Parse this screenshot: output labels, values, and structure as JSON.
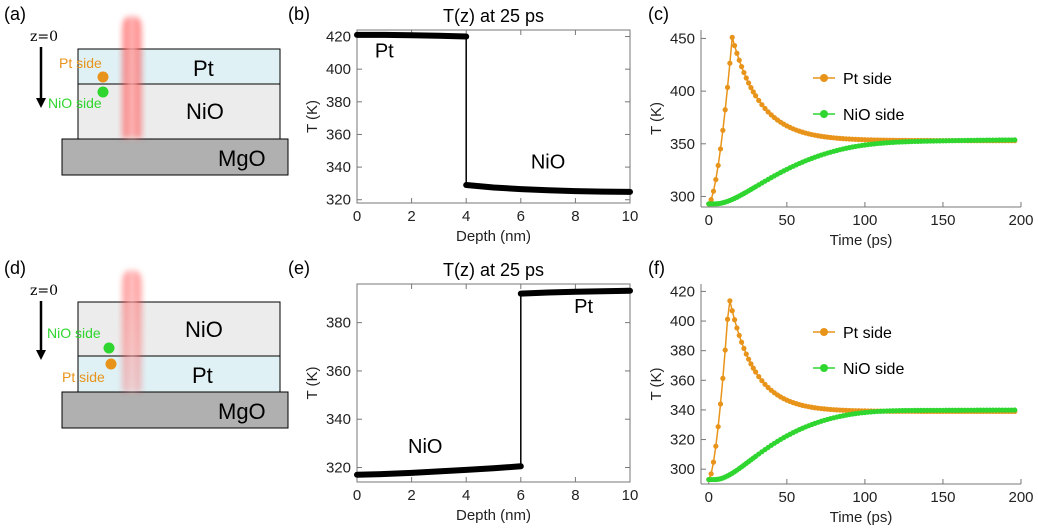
{
  "panel_labels": {
    "a": "(a)",
    "b": "(b)",
    "c": "(c)",
    "d": "(d)",
    "e": "(e)",
    "f": "(f)"
  },
  "schematics": [
    {
      "z_label": "z=0",
      "top_layer": "Pt",
      "middle_layer": "NiO",
      "substrate": "MgO",
      "upper_side_label": "Pt side",
      "lower_side_label": "NiO side",
      "colors": {
        "pt_layer": "#dff1f5",
        "nio_layer": "#ececec",
        "mgo": "#b0b0b0",
        "pt_side": "#e8931a",
        "nio_side": "#2fd62f"
      }
    },
    {
      "z_label": "z=0",
      "top_layer": "NiO",
      "middle_layer": "Pt",
      "substrate": "MgO",
      "upper_side_label": "NiO side",
      "lower_side_label": "Pt side",
      "colors": {
        "pt_layer": "#dff1f5",
        "nio_layer": "#ececec",
        "mgo": "#b0b0b0",
        "pt_side": "#e8931a",
        "nio_side": "#2fd62f"
      }
    }
  ],
  "chart_data": [
    {
      "id": "b",
      "type": "line",
      "title": "T(z) at 25 ps",
      "xlabel": "Depth (nm)",
      "ylabel": "T (K)",
      "xlim": [
        0,
        10
      ],
      "ylim": [
        318,
        424
      ],
      "xticks": [
        0,
        2,
        4,
        6,
        8,
        10
      ],
      "yticks": [
        320,
        340,
        360,
        380,
        400,
        420
      ],
      "annotations": [
        {
          "text": "Pt",
          "x": 1.0,
          "y": 407
        },
        {
          "text": "NiO",
          "x": 7.0,
          "y": 339
        }
      ],
      "color": "#000000",
      "series": [
        {
          "name": "T(z)",
          "x": [
            0,
            1,
            2,
            3,
            4,
            4,
            5,
            6,
            7,
            8,
            9,
            10
          ],
          "y": [
            421,
            421,
            420.8,
            420.5,
            420,
            329,
            327.5,
            326.5,
            325.8,
            325.3,
            325,
            324.8
          ]
        }
      ]
    },
    {
      "id": "c",
      "type": "scatter",
      "xlabel": "Time (ps)",
      "ylabel": "T (K)",
      "xlim": [
        -5,
        200
      ],
      "ylim": [
        290,
        458
      ],
      "xticks": [
        0,
        50,
        100,
        150,
        200
      ],
      "yticks": [
        300,
        350,
        400,
        450
      ],
      "legend": "top-right",
      "series": [
        {
          "name": "Pt side",
          "color": "#e8931a",
          "peak_time": 15,
          "peak": 451,
          "start": 293,
          "final": 353,
          "tau": 18
        },
        {
          "name": "NiO side",
          "color": "#2fd62f",
          "start": 293,
          "final": 354,
          "tau": 26,
          "onset": 4,
          "overshoot": 2
        }
      ]
    },
    {
      "id": "e",
      "type": "line",
      "title": "T(z) at 25 ps",
      "xlabel": "Depth (nm)",
      "ylabel": "T (K)",
      "xlim": [
        0,
        10
      ],
      "ylim": [
        314,
        396
      ],
      "xticks": [
        0,
        2,
        4,
        6,
        8,
        10
      ],
      "yticks": [
        320,
        340,
        360,
        380
      ],
      "annotations": [
        {
          "text": "Pt",
          "x": 8.3,
          "y": 384
        },
        {
          "text": "NiO",
          "x": 2.5,
          "y": 326
        }
      ],
      "color": "#000000",
      "series": [
        {
          "name": "T(z)",
          "x": [
            0,
            1,
            2,
            3,
            4,
            5,
            6,
            6,
            7,
            8,
            9,
            10
          ],
          "y": [
            317,
            317.3,
            317.8,
            318.4,
            319,
            319.7,
            320.5,
            392,
            392.5,
            392.8,
            393,
            393.2
          ]
        }
      ]
    },
    {
      "id": "f",
      "type": "scatter",
      "xlabel": "Time (ps)",
      "ylabel": "T (K)",
      "xlim": [
        -5,
        200
      ],
      "ylim": [
        290,
        425
      ],
      "xticks": [
        0,
        50,
        100,
        150,
        200
      ],
      "yticks": [
        300,
        320,
        340,
        360,
        380,
        400,
        420
      ],
      "legend": "top-right",
      "series": [
        {
          "name": "Pt side",
          "color": "#e8931a",
          "peak_time": 13,
          "peak": 416,
          "start": 293,
          "final": 339,
          "tau": 16
        },
        {
          "name": "NiO side",
          "color": "#2fd62f",
          "start": 293,
          "final": 340,
          "tau": 22,
          "onset": 4,
          "overshoot": 1.5
        }
      ]
    }
  ]
}
